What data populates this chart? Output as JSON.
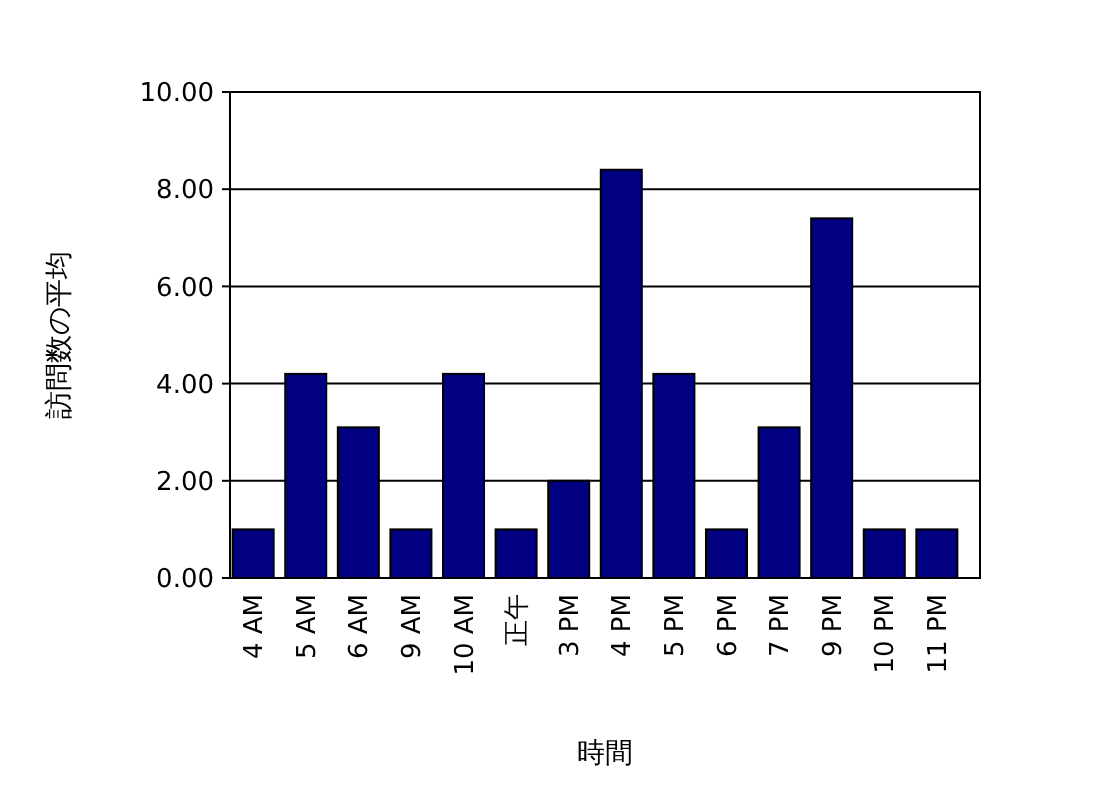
{
  "chart_data": {
    "type": "bar",
    "xlabel": "時間",
    "ylabel": "訪問数の平均",
    "categories": [
      "4 AM",
      "5 AM",
      "6 AM",
      "9 AM",
      "10 AM",
      "正午",
      "3 PM",
      "4 PM",
      "5 PM",
      "6 PM",
      "7 PM",
      "9 PM",
      "10 PM",
      "11 PM"
    ],
    "series": [
      {
        "color": "#000080",
        "values": [
          1,
          4.2,
          3.1,
          1,
          4.2,
          1,
          2,
          8.4,
          4.2,
          1,
          3.1,
          7.4,
          1,
          1
        ]
      }
    ],
    "ylim": [
      0,
      10
    ],
    "yticks": [
      {
        "value": 0,
        "label": "0.00"
      },
      {
        "value": 2,
        "label": "2.00"
      },
      {
        "value": 4,
        "label": "4.00"
      },
      {
        "value": 6,
        "label": "6.00"
      },
      {
        "value": 8,
        "label": "8.00"
      },
      {
        "value": 10,
        "label": "10.00"
      }
    ],
    "grid": "y"
  }
}
